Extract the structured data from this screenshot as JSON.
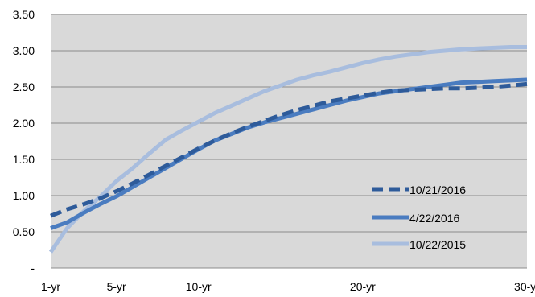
{
  "chart_data": {
    "type": "line",
    "title": "",
    "xlabel": "",
    "ylabel": "",
    "x": [
      1,
      2,
      3,
      4,
      5,
      6,
      7,
      8,
      9,
      10,
      11,
      12,
      13,
      14,
      15,
      16,
      17,
      18,
      19,
      20,
      21,
      22,
      23,
      24,
      25,
      26,
      27,
      28,
      29,
      30
    ],
    "x_tick_labels": [
      {
        "x": 1,
        "label": "1-yr"
      },
      {
        "x": 5,
        "label": "5-yr"
      },
      {
        "x": 10,
        "label": "10-yr"
      },
      {
        "x": 20,
        "label": "20-yr"
      },
      {
        "x": 30,
        "label": "30-yr"
      }
    ],
    "ylim": [
      0,
      3.5
    ],
    "y_ticks": [
      0,
      0.5,
      1.0,
      1.5,
      2.0,
      2.5,
      3.0,
      3.5
    ],
    "y_tick_labels": [
      "-",
      "0.50",
      "1.00",
      "1.50",
      "2.00",
      "2.50",
      "3.00",
      "3.50"
    ],
    "grid": "horizontal",
    "plot_background": "#D9D9D9",
    "legend_position": "lower-right",
    "series": [
      {
        "name": "10/21/2016",
        "color": "#2E5B9A",
        "dash": "dashed",
        "values": [
          0.72,
          0.81,
          0.88,
          0.96,
          1.06,
          1.17,
          1.29,
          1.41,
          1.53,
          1.65,
          1.76,
          1.86,
          1.95,
          2.03,
          2.11,
          2.18,
          2.24,
          2.3,
          2.34,
          2.38,
          2.42,
          2.45,
          2.46,
          2.47,
          2.48,
          2.48,
          2.49,
          2.5,
          2.52,
          2.54
        ]
      },
      {
        "name": "4/22/2016",
        "color": "#4A7CC0",
        "dash": "solid",
        "values": [
          0.55,
          0.63,
          0.76,
          0.88,
          0.99,
          1.12,
          1.25,
          1.38,
          1.51,
          1.64,
          1.76,
          1.85,
          1.94,
          2.01,
          2.07,
          2.13,
          2.19,
          2.25,
          2.31,
          2.36,
          2.41,
          2.44,
          2.47,
          2.5,
          2.53,
          2.56,
          2.57,
          2.58,
          2.59,
          2.6
        ]
      },
      {
        "name": "10/22/2015",
        "color": "#A8BDDE",
        "dash": "solid",
        "values": [
          0.22,
          0.55,
          0.78,
          0.98,
          1.2,
          1.38,
          1.58,
          1.77,
          1.9,
          2.02,
          2.14,
          2.24,
          2.34,
          2.44,
          2.52,
          2.6,
          2.66,
          2.71,
          2.77,
          2.83,
          2.88,
          2.92,
          2.95,
          2.98,
          3.0,
          3.02,
          3.03,
          3.04,
          3.05,
          3.05
        ]
      }
    ]
  }
}
